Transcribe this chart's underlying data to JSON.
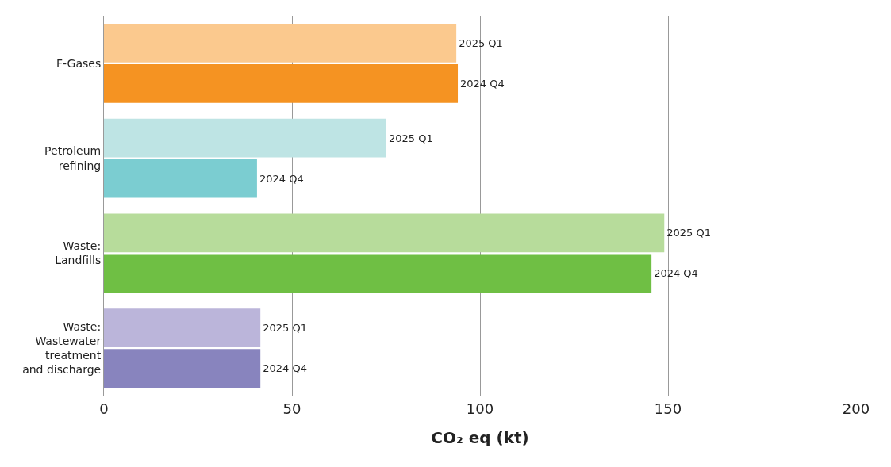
{
  "chart_data": {
    "type": "bar",
    "orientation": "horizontal",
    "xlabel": "CO₂ eq (kt)",
    "categories": [
      "F-Gases",
      "Petroleum\nrefining",
      "Waste:\nLandfills",
      "Waste:\nWastewater\ntreatment\nand discharge"
    ],
    "series": [
      {
        "name": "2025 Q1",
        "colors": [
          "#fbc98e",
          "#bee4e4",
          "#b7dc9b",
          "#bbb5da"
        ],
        "values": [
          93.7,
          75.1,
          149,
          41.6
        ]
      },
      {
        "name": "2024 Q4",
        "colors": [
          "#f59322",
          "#7bcdd1",
          "#6fbf44",
          "#8884be"
        ],
        "values": [
          94.1,
          40.7,
          145.6,
          41.6
        ]
      }
    ],
    "xlim": [
      0,
      200
    ],
    "xticks": [
      0,
      50,
      100,
      150,
      200
    ],
    "grid": "x",
    "legend": false
  }
}
